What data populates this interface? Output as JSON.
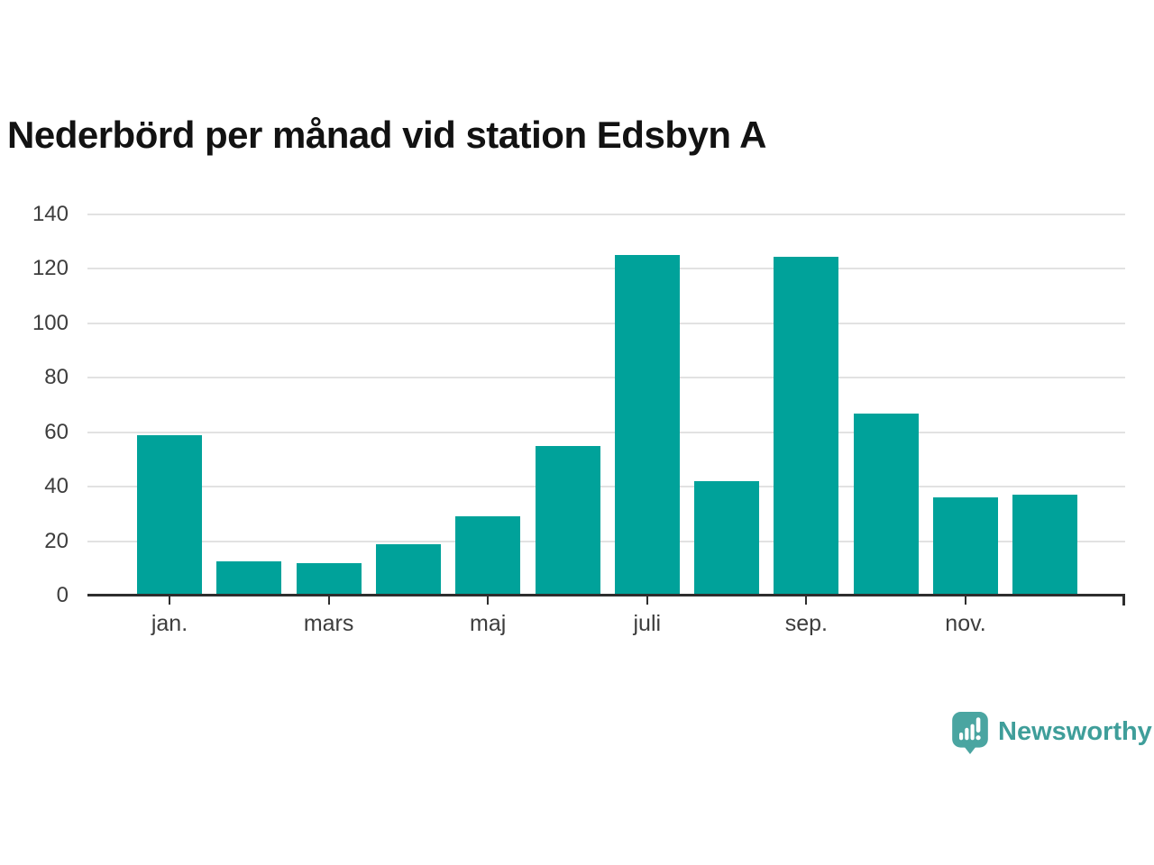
{
  "chart_data": {
    "type": "bar",
    "title": "Nederbörd per månad vid station Edsbyn A",
    "values": [
      59,
      12.5,
      12,
      19,
      29,
      55,
      125,
      42,
      124.5,
      67,
      36,
      37
    ],
    "x_ticks": [
      {
        "index": 0,
        "label": "jan."
      },
      {
        "index": 2,
        "label": "mars"
      },
      {
        "index": 4,
        "label": "maj"
      },
      {
        "index": 6,
        "label": "juli"
      },
      {
        "index": 8,
        "label": "sep."
      },
      {
        "index": 10,
        "label": "nov."
      }
    ],
    "y_ticks": [
      0,
      20,
      40,
      60,
      80,
      100,
      120,
      140
    ],
    "ylim": [
      0,
      140
    ],
    "grid": true,
    "legend": false,
    "bar_color": "#00a29a",
    "gridline_color": "#e2e2e2",
    "axis_color": "#2e2e2e",
    "tick_label_color": "#3d3d3d"
  },
  "branding": {
    "logo_text": "Newsworthy",
    "logo_icon": "newsworthy-bar-chart-speech-bubble",
    "bubble_color": "#4aa5a1",
    "text_color": "#3f9e9a"
  }
}
